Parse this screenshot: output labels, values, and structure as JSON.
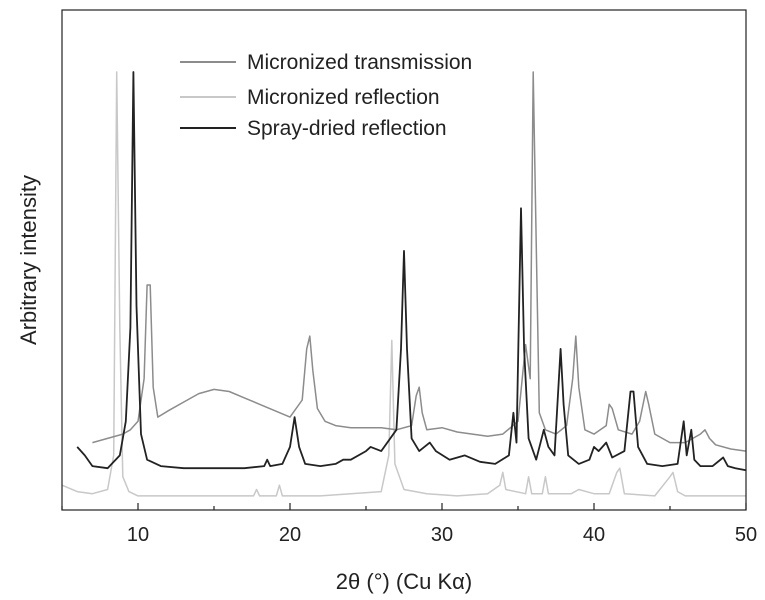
{
  "chart_data": {
    "type": "line",
    "xlabel": "2θ (°) (Cu Kα)",
    "ylabel": "Arbitrary intensity",
    "xlim": [
      5,
      50
    ],
    "ylim": [
      0,
      100
    ],
    "xticks": [
      10,
      20,
      30,
      40,
      50
    ],
    "grid": false,
    "legend_position": "top-left",
    "series": [
      {
        "name": "Micronized transmission",
        "color": "#8c8c8c",
        "x": [
          7.0,
          8.0,
          9.0,
          9.5,
          10.0,
          10.4,
          10.6,
          10.8,
          11.0,
          11.3,
          12.0,
          13.0,
          14.0,
          15.0,
          16.0,
          17.0,
          18.0,
          19.0,
          20.0,
          20.8,
          21.1,
          21.3,
          21.5,
          21.8,
          22.3,
          23.0,
          24.0,
          25.0,
          26.0,
          27.0,
          28.0,
          28.3,
          28.5,
          28.7,
          29.0,
          30.0,
          31.0,
          32.0,
          33.0,
          34.0,
          35.0,
          35.5,
          35.8,
          36.0,
          36.2,
          36.4,
          36.8,
          37.5,
          38.2,
          38.6,
          38.8,
          39.0,
          39.4,
          40.0,
          40.8,
          41.0,
          41.2,
          41.6,
          42.5,
          43.0,
          43.4,
          43.6,
          44.0,
          45.0,
          46.0,
          47.0,
          47.3,
          47.6,
          48.0,
          49.0,
          50.0
        ],
        "y": [
          13,
          14,
          15,
          16,
          18,
          28,
          50,
          50,
          26,
          19,
          20.5,
          22.5,
          24.5,
          25.5,
          25,
          23.5,
          22,
          20.5,
          19,
          23,
          35,
          38,
          30,
          21,
          18,
          17,
          16.5,
          16.5,
          16.5,
          16,
          17,
          24,
          26,
          20,
          16,
          16.5,
          15.5,
          15,
          14.5,
          15,
          18,
          36,
          28,
          100,
          60,
          20,
          16,
          15,
          17,
          28,
          38,
          26,
          16,
          15,
          17,
          22,
          21,
          16,
          15,
          18,
          25,
          22,
          15,
          13,
          13,
          15,
          16,
          14,
          12.5,
          11.5,
          11
        ]
      },
      {
        "name": "Micronized reflection",
        "color": "#c8c8c8",
        "x": [
          5.0,
          6.0,
          7.0,
          8.0,
          8.4,
          8.6,
          8.8,
          9.0,
          9.4,
          10.0,
          12.0,
          14.0,
          16.0,
          17.6,
          17.8,
          18.0,
          19.1,
          19.3,
          19.5,
          20.0,
          22.0,
          24.0,
          26.0,
          26.5,
          26.7,
          26.9,
          27.5,
          29.0,
          31.0,
          33.0,
          33.8,
          34.0,
          34.2,
          35.5,
          35.7,
          35.9,
          36.6,
          36.8,
          37.0,
          38.5,
          39.0,
          40.0,
          41.0,
          41.5,
          41.7,
          42.0,
          44.0,
          45.0,
          45.2,
          45.5,
          46.0,
          47.0,
          48.0,
          50.0
        ],
        "y": [
          3,
          1.5,
          1,
          2,
          10,
          100,
          40,
          5,
          1.5,
          0.5,
          0.5,
          0.5,
          0.5,
          0.5,
          2,
          0.5,
          0.5,
          3,
          0.5,
          0.5,
          0.5,
          1,
          1.5,
          10,
          37,
          8,
          2,
          1,
          0.5,
          1,
          3,
          6,
          2,
          1,
          5,
          1,
          1,
          5,
          1,
          1,
          2,
          1,
          1,
          6,
          7,
          1,
          0.5,
          5,
          6,
          1.5,
          0.5,
          0.5,
          0.5,
          0.5
        ]
      },
      {
        "name": "Spray-dried reflection",
        "color": "#222222",
        "x": [
          6.0,
          6.5,
          7.0,
          8.0,
          8.8,
          9.2,
          9.5,
          9.7,
          9.9,
          10.2,
          10.6,
          11.5,
          13.0,
          15.0,
          17.0,
          18.3,
          18.5,
          18.7,
          19.5,
          20.0,
          20.3,
          20.6,
          21.0,
          22.0,
          23.0,
          23.5,
          24.0,
          25.0,
          25.3,
          26.0,
          27.0,
          27.3,
          27.5,
          27.7,
          28.0,
          28.5,
          29.2,
          29.6,
          30.5,
          31.5,
          32.5,
          33.5,
          34.4,
          34.7,
          34.9,
          35.2,
          35.4,
          35.7,
          36.2,
          36.7,
          37.0,
          37.4,
          37.8,
          38.0,
          38.3,
          39.0,
          39.7,
          40.0,
          40.3,
          40.8,
          41.2,
          42.0,
          42.4,
          42.6,
          42.9,
          43.5,
          44.5,
          45.5,
          45.9,
          46.1,
          46.4,
          46.6,
          47.0,
          47.8,
          48.5,
          48.8,
          49.3,
          50.0
        ],
        "y": [
          12,
          10,
          7.5,
          7,
          10,
          18,
          40,
          100,
          45,
          15,
          9,
          7.5,
          7,
          7,
          7,
          7.5,
          9,
          7.5,
          8,
          12,
          19,
          12,
          8,
          7.5,
          8,
          9,
          9,
          11,
          12,
          11,
          16,
          35,
          58,
          35,
          14,
          11,
          13,
          11,
          9,
          10,
          8.5,
          8,
          10,
          20,
          13,
          68,
          35,
          14,
          9,
          16,
          12,
          10,
          35,
          22,
          10,
          8,
          9,
          12,
          11,
          13,
          9.5,
          11,
          25,
          25,
          12,
          8,
          7.5,
          8,
          18,
          10,
          16,
          9,
          7.5,
          7.5,
          9.5,
          7.5,
          7,
          6.5
        ]
      }
    ]
  }
}
